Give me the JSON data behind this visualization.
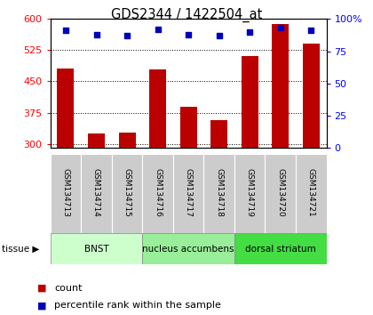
{
  "title": "GDS2344 / 1422504_at",
  "samples": [
    "GSM134713",
    "GSM134714",
    "GSM134715",
    "GSM134716",
    "GSM134717",
    "GSM134718",
    "GSM134719",
    "GSM134720",
    "GSM134721"
  ],
  "counts": [
    480,
    325,
    328,
    478,
    390,
    358,
    510,
    588,
    540
  ],
  "percentile_ranks": [
    91,
    88,
    87,
    92,
    88,
    87,
    90,
    93,
    91
  ],
  "ylim_left": [
    290,
    600
  ],
  "ylim_right": [
    0,
    100
  ],
  "yticks_left": [
    300,
    375,
    450,
    525,
    600
  ],
  "yticks_right": [
    0,
    25,
    50,
    75,
    100
  ],
  "bar_color": "#bb0000",
  "dot_color": "#0000bb",
  "bar_width": 0.55,
  "tissues": [
    {
      "label": "BNST",
      "start": 0,
      "end": 3,
      "color": "#ccffcc"
    },
    {
      "label": "nucleus accumbens",
      "start": 3,
      "end": 6,
      "color": "#99ee99"
    },
    {
      "label": "dorsal striatum",
      "start": 6,
      "end": 9,
      "color": "#44dd44"
    }
  ],
  "tissue_label": "tissue",
  "legend_count_label": "count",
  "legend_pct_label": "percentile rank within the sample",
  "background_color": "#ffffff",
  "plot_bg": "#ffffff",
  "sample_label_bg": "#cccccc"
}
